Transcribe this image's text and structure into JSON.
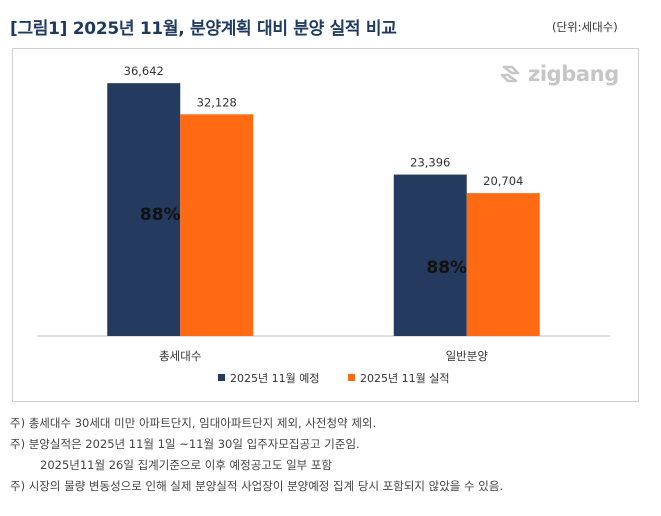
{
  "header": {
    "title": "[그림1] 2025년 11월, 분양계획 대비 분양 실적 비교",
    "unit": "(단위:세대수)"
  },
  "logo": {
    "text": "zigbang",
    "icon": "zigbang-logo-icon"
  },
  "colors": {
    "plan": "#243a5e",
    "actual": "#ff6a13",
    "axis": "#bfbfbf",
    "logo": "#c6c6c6"
  },
  "chart_data": {
    "type": "bar",
    "categories": [
      "총세대수",
      "일반분양"
    ],
    "series": [
      {
        "name": "2025년 11월 예정",
        "values": [
          36642,
          23396
        ],
        "labels": [
          "36,642",
          "23,396"
        ],
        "color": "#243a5e"
      },
      {
        "name": "2025년 11월 실적",
        "values": [
          32128,
          20704
        ],
        "labels": [
          "32,128",
          "20,704"
        ],
        "color": "#ff6a13"
      }
    ],
    "annotations": [
      "88%",
      "88%"
    ],
    "ylim": [
      0,
      40000
    ],
    "grid": false,
    "legend_position": "bottom"
  },
  "notes": [
    "주) 총세대수 30세대 미만 아파트단지, 임대아파트단지 제외, 사전청약 제외.",
    "주) 분양실적은 2025년 11월 1일 ~11월 30일 입주자모집공고 기준임.",
    "2025년11월 26일 집계기준으로 이후 예정공고도 일부 포함",
    "주) 시장의 물량 변동성으로 인해 실제 분양실적 사업장이 분양예정 집계 당시 포함되지 않았을 수 있음."
  ]
}
